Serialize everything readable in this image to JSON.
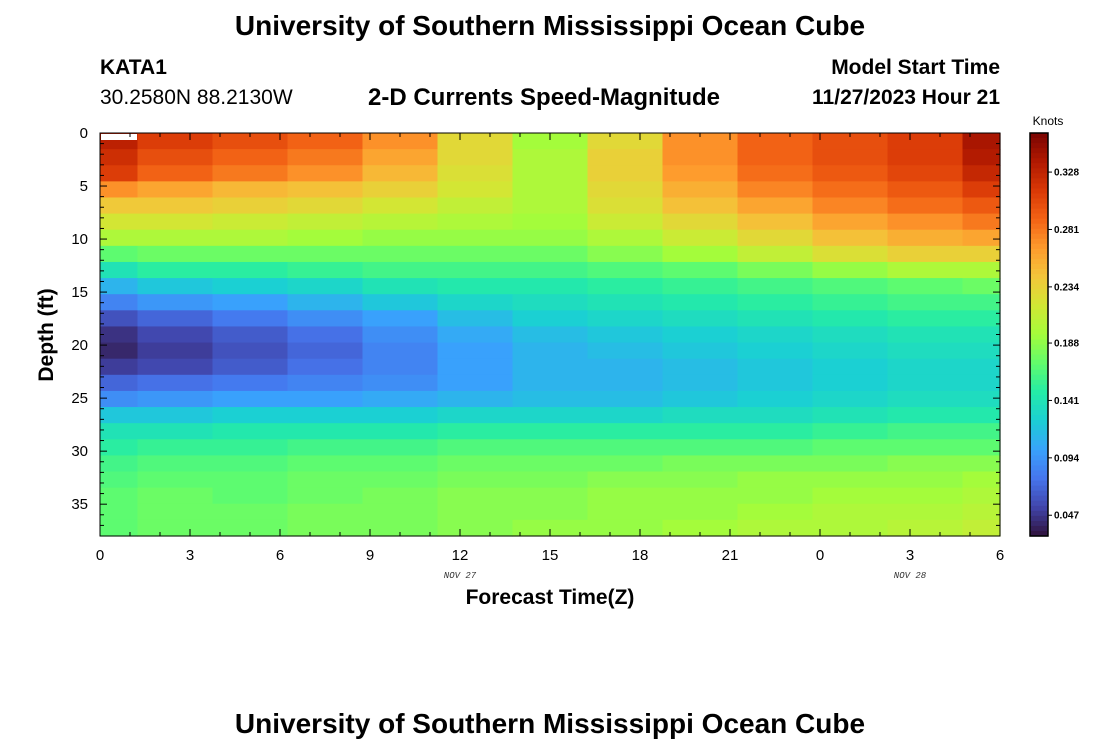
{
  "page": {
    "title_top": "University of Southern Mississippi Ocean Cube",
    "title_bottom": "University of Southern Mississippi Ocean Cube",
    "station_id": "KATA1",
    "coordinates": "30.2580N  88.2130W",
    "subtitle": "2-D Currents Speed-Magnitude",
    "model_start_label": "Model Start Time",
    "model_start_value": "11/27/2023 Hour 21"
  },
  "chart_data": {
    "type": "heatmap",
    "title": "2-D Currents Speed-Magnitude",
    "xlabel": "Forecast Time(Z)",
    "ylabel": "Depth (ft)",
    "x_tick_labels": [
      "0",
      "3",
      "6",
      "9",
      "12",
      "15",
      "18",
      "21",
      "0",
      "3",
      "6"
    ],
    "x_range_hours": [
      0,
      30
    ],
    "date_labels": [
      {
        "text": "NOV 27",
        "hour": 12
      },
      {
        "text": "NOV 28",
        "hour": 27
      }
    ],
    "y_tick_labels": [
      "0",
      "5",
      "10",
      "15",
      "20",
      "25",
      "30",
      "35"
    ],
    "y_range_ft": [
      0,
      38
    ],
    "colorbar": {
      "label": "Knots",
      "tick_labels": [
        "0.328",
        "0.281",
        "0.234",
        "0.188",
        "0.141",
        "0.094",
        "0.047"
      ],
      "range": [
        0.03,
        0.36
      ],
      "colors": [
        "#30123b",
        "#4145ab",
        "#4675ed",
        "#39a2fc",
        "#1bcfd4",
        "#24eca6",
        "#61fc6c",
        "#a4fc3b",
        "#d1e834",
        "#f3c63a",
        "#fe9b2d",
        "#f36315",
        "#d93806",
        "#b11901",
        "#7a0402"
      ]
    },
    "columns_start_hours": [
      0,
      1.25,
      3.75,
      6.25,
      8.75,
      11.25,
      13.75,
      16.25,
      18.75,
      21.25,
      23.75,
      26.25,
      28.75
    ],
    "depth_profiles": [
      {
        "start_hour": 0,
        "knots": [
          0.33,
          0.32,
          0.31,
          0.27,
          0.24,
          0.22,
          0.2,
          0.17,
          0.14,
          0.11,
          0.085,
          0.06,
          0.045,
          0.04,
          0.05,
          0.07,
          0.09,
          0.12,
          0.14,
          0.15,
          0.16,
          0.165,
          0.17,
          0.17,
          0.17
        ]
      },
      {
        "start_hour": 1.25,
        "knots": [
          0.31,
          0.3,
          0.29,
          0.26,
          0.24,
          0.22,
          0.2,
          0.175,
          0.15,
          0.12,
          0.095,
          0.07,
          0.055,
          0.05,
          0.055,
          0.075,
          0.095,
          0.12,
          0.14,
          0.155,
          0.165,
          0.17,
          0.175,
          0.175,
          0.175
        ]
      },
      {
        "start_hour": 3.75,
        "knots": [
          0.3,
          0.29,
          0.28,
          0.25,
          0.235,
          0.215,
          0.2,
          0.175,
          0.15,
          0.125,
          0.1,
          0.08,
          0.065,
          0.06,
          0.065,
          0.08,
          0.1,
          0.125,
          0.145,
          0.155,
          0.165,
          0.17,
          0.17,
          0.175,
          0.175
        ]
      },
      {
        "start_hour": 6.25,
        "knots": [
          0.29,
          0.28,
          0.27,
          0.245,
          0.23,
          0.21,
          0.195,
          0.175,
          0.155,
          0.13,
          0.11,
          0.09,
          0.075,
          0.07,
          0.075,
          0.085,
          0.1,
          0.125,
          0.145,
          0.16,
          0.17,
          0.175,
          0.175,
          0.18,
          0.18
        ]
      },
      {
        "start_hour": 8.75,
        "knots": [
          0.27,
          0.26,
          0.25,
          0.235,
          0.22,
          0.205,
          0.19,
          0.175,
          0.16,
          0.14,
          0.12,
          0.1,
          0.09,
          0.085,
          0.085,
          0.09,
          0.105,
          0.125,
          0.145,
          0.16,
          0.17,
          0.175,
          0.18,
          0.18,
          0.18
        ]
      },
      {
        "start_hour": 11.25,
        "knots": [
          0.23,
          0.23,
          0.225,
          0.22,
          0.21,
          0.2,
          0.19,
          0.175,
          0.16,
          0.145,
          0.13,
          0.115,
          0.105,
          0.1,
          0.1,
          0.1,
          0.11,
          0.13,
          0.15,
          0.165,
          0.175,
          0.18,
          0.185,
          0.185,
          0.185
        ]
      },
      {
        "start_hour": 13.75,
        "knots": [
          0.195,
          0.2,
          0.2,
          0.2,
          0.2,
          0.195,
          0.19,
          0.175,
          0.16,
          0.145,
          0.135,
          0.125,
          0.115,
          0.11,
          0.11,
          0.11,
          0.115,
          0.13,
          0.15,
          0.165,
          0.175,
          0.18,
          0.185,
          0.185,
          0.19
        ]
      },
      {
        "start_hour": 16.25,
        "knots": [
          0.23,
          0.235,
          0.235,
          0.23,
          0.225,
          0.215,
          0.2,
          0.185,
          0.165,
          0.15,
          0.14,
          0.13,
          0.12,
          0.115,
          0.11,
          0.11,
          0.115,
          0.13,
          0.15,
          0.165,
          0.175,
          0.185,
          0.19,
          0.19,
          0.19
        ]
      },
      {
        "start_hour": 18.75,
        "knots": [
          0.27,
          0.27,
          0.265,
          0.255,
          0.245,
          0.23,
          0.215,
          0.195,
          0.17,
          0.155,
          0.145,
          0.135,
          0.125,
          0.12,
          0.115,
          0.115,
          0.12,
          0.135,
          0.15,
          0.165,
          0.18,
          0.185,
          0.19,
          0.19,
          0.195
        ]
      },
      {
        "start_hour": 21.25,
        "knots": [
          0.29,
          0.29,
          0.285,
          0.275,
          0.26,
          0.245,
          0.23,
          0.21,
          0.18,
          0.16,
          0.15,
          0.14,
          0.13,
          0.125,
          0.12,
          0.12,
          0.125,
          0.135,
          0.15,
          0.165,
          0.18,
          0.19,
          0.19,
          0.195,
          0.2
        ]
      },
      {
        "start_hour": 23.75,
        "knots": [
          0.3,
          0.3,
          0.295,
          0.285,
          0.275,
          0.26,
          0.245,
          0.225,
          0.19,
          0.165,
          0.155,
          0.145,
          0.135,
          0.13,
          0.125,
          0.125,
          0.13,
          0.14,
          0.155,
          0.17,
          0.18,
          0.19,
          0.195,
          0.2,
          0.2
        ]
      },
      {
        "start_hour": 26.25,
        "knots": [
          0.31,
          0.31,
          0.305,
          0.295,
          0.285,
          0.27,
          0.255,
          0.235,
          0.2,
          0.17,
          0.16,
          0.15,
          0.14,
          0.135,
          0.13,
          0.13,
          0.135,
          0.145,
          0.16,
          0.17,
          0.185,
          0.19,
          0.195,
          0.2,
          0.205
        ]
      },
      {
        "start_hour": 28.75,
        "knots": [
          0.34,
          0.335,
          0.325,
          0.31,
          0.295,
          0.28,
          0.26,
          0.235,
          0.2,
          0.175,
          0.16,
          0.15,
          0.14,
          0.135,
          0.13,
          0.13,
          0.135,
          0.145,
          0.16,
          0.17,
          0.185,
          0.195,
          0.2,
          0.205,
          0.21
        ]
      }
    ]
  }
}
